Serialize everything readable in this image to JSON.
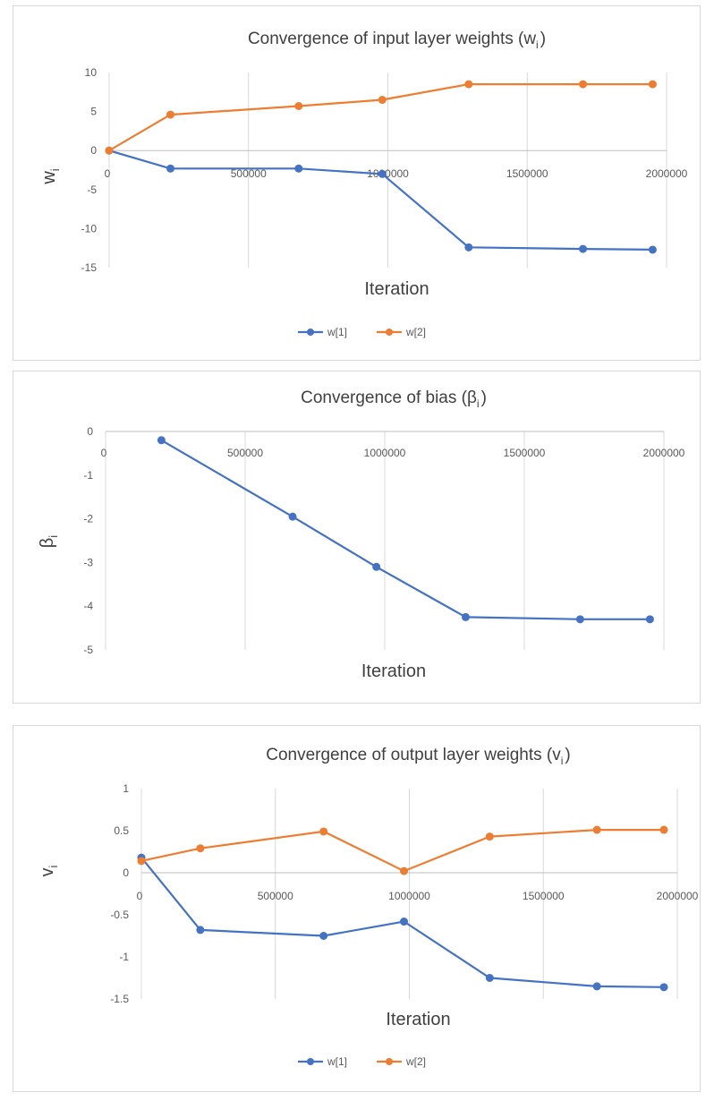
{
  "chart_data": [
    {
      "type": "line",
      "title": "Convergence of input layer weights (w",
      "title_sub": "i",
      "title_end": ")",
      "xlabel": "Iteration",
      "ylabel": "w",
      "ylabel_sub": "i",
      "xlim": [
        0,
        2000000
      ],
      "ylim": [
        -15,
        10
      ],
      "x_ticks": [
        "0",
        "500000",
        "1000000",
        "1500000",
        "2000000"
      ],
      "y_ticks": [
        "10",
        "5",
        "0",
        "-5",
        "-10",
        "-15"
      ],
      "grid": "vertical",
      "legend": "bottom",
      "series": [
        {
          "name": "w[1]",
          "color": "#4472c4",
          "x": [
            0,
            220000,
            680000,
            980000,
            1290000,
            1700000,
            1950000
          ],
          "y": [
            0,
            -2.3,
            -2.3,
            -3.0,
            -12.4,
            -12.6,
            -12.7
          ]
        },
        {
          "name": "w[2]",
          "color": "#ed7d31",
          "x": [
            0,
            220000,
            680000,
            980000,
            1290000,
            1700000,
            1950000
          ],
          "y": [
            0,
            4.6,
            5.7,
            6.5,
            8.5,
            8.5,
            8.5
          ]
        }
      ]
    },
    {
      "type": "line",
      "title": "Convergence of bias (β",
      "title_sub": "i",
      "title_end": ")",
      "xlabel": "Iteration",
      "ylabel": "β",
      "ylabel_sub": "i",
      "xlim": [
        0,
        2000000
      ],
      "ylim": [
        -5,
        0
      ],
      "x_ticks": [
        "0",
        "500000",
        "1000000",
        "1500000",
        "2000000"
      ],
      "y_ticks": [
        "0",
        "-1",
        "-2",
        "-3",
        "-4",
        "-5"
      ],
      "grid": "vertical",
      "legend": "none",
      "series": [
        {
          "name": "",
          "color": "#4472c4",
          "x": [
            200000,
            670000,
            970000,
            1290000,
            1700000,
            1950000
          ],
          "y": [
            -0.2,
            -1.95,
            -3.1,
            -4.25,
            -4.3,
            -4.3
          ]
        }
      ]
    },
    {
      "type": "line",
      "title": "Convergence of output layer weights (v",
      "title_sub": "i",
      "title_end": ")",
      "xlabel": "Iteration",
      "ylabel": "v",
      "ylabel_sub": "i",
      "xlim": [
        0,
        2000000
      ],
      "ylim": [
        -1.5,
        1
      ],
      "x_ticks": [
        "0",
        "500000",
        "1000000",
        "1500000",
        "2000000"
      ],
      "y_ticks": [
        "1",
        "0.5",
        "0",
        "-0.5",
        "-1",
        "-1.5"
      ],
      "grid": "vertical",
      "legend": "bottom",
      "series": [
        {
          "name": "w[1]",
          "color": "#4472c4",
          "x": [
            0,
            220000,
            680000,
            980000,
            1300000,
            1700000,
            1950000
          ],
          "y": [
            0.18,
            -0.68,
            -0.75,
            -0.58,
            -1.25,
            -1.35,
            -1.36
          ]
        },
        {
          "name": "w[2]",
          "color": "#ed7d31",
          "x": [
            0,
            220000,
            680000,
            980000,
            1300000,
            1700000,
            1950000
          ],
          "y": [
            0.14,
            0.29,
            0.49,
            0.02,
            0.43,
            0.51,
            0.51
          ]
        }
      ]
    }
  ]
}
